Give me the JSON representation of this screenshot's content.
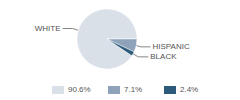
{
  "chart_data": {
    "type": "pie",
    "categories": [
      "WHITE",
      "HISPANIC",
      "BLACK"
    ],
    "values": [
      90.6,
      7.1,
      2.4
    ],
    "value_labels": [
      "90.6%",
      "7.1%",
      "2.4%"
    ],
    "colors": [
      "#d9e0e8",
      "#8ea3b9",
      "#2d5a7b"
    ],
    "legend": "bottom"
  }
}
